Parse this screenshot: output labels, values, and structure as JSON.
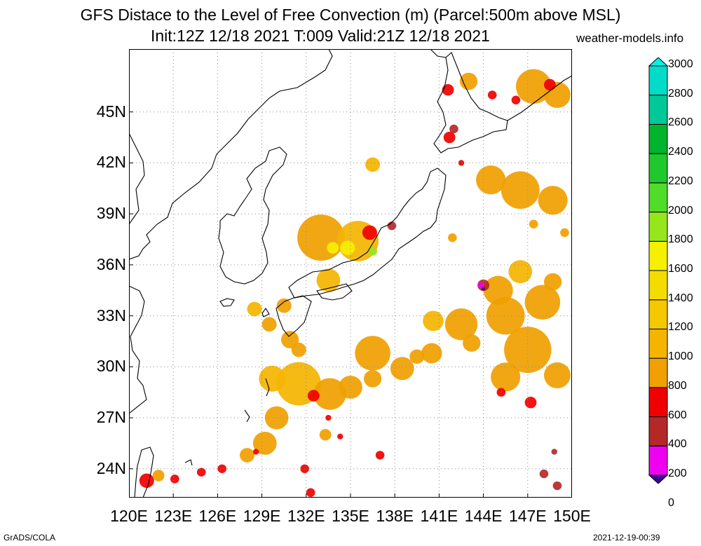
{
  "title": {
    "line1": "GFS Distace to the Level of Free Convection (m) (Parcel:500m above MSL)",
    "line2": "Init:12Z 12/18 2021 T:009 Valid:21Z 12/18 2021",
    "site": "weather-models.info"
  },
  "footer": {
    "left": "GrADS/COLA",
    "right": "2021-12-19-00:39"
  },
  "axes": {
    "lon_range": [
      120,
      150
    ],
    "lat_range": [
      22.3,
      48.7
    ],
    "x_ticks": [
      "120E",
      "123E",
      "126E",
      "129E",
      "132E",
      "135E",
      "138E",
      "141E",
      "144E",
      "147E",
      "150E"
    ],
    "y_ticks": [
      "24N",
      "27N",
      "30N",
      "33N",
      "36N",
      "39N",
      "42N",
      "45N"
    ],
    "grid": "dotted"
  },
  "colorbar": {
    "labels": [
      "0",
      "200",
      "400",
      "600",
      "800",
      "1000",
      "1200",
      "1400",
      "1600",
      "1800",
      "2000",
      "2200",
      "2400",
      "2600",
      "2800",
      "3000"
    ],
    "colors": [
      "#3c0096",
      "#f000f0",
      "#b42828",
      "#f00000",
      "#f0a000",
      "#f5b400",
      "#f5c800",
      "#f5dc00",
      "#f5f000",
      "#96e61e",
      "#50dc28",
      "#1ec82d",
      "#00b42d",
      "#00c896",
      "#00dcc8",
      "#00f0e6"
    ]
  },
  "fields": [
    {
      "lon": 133.0,
      "lat": 37.6,
      "c": 4,
      "r": 1.6
    },
    {
      "lon": 135.5,
      "lat": 37.4,
      "c": 5,
      "r": 1.4
    },
    {
      "lon": 136.3,
      "lat": 37.9,
      "c": 3,
      "r": 0.5
    },
    {
      "lon": 133.8,
      "lat": 37.0,
      "c": 8,
      "r": 0.4
    },
    {
      "lon": 134.8,
      "lat": 37.0,
      "c": 8,
      "r": 0.5
    },
    {
      "lon": 136.5,
      "lat": 36.8,
      "c": 9,
      "r": 0.3
    },
    {
      "lon": 133.5,
      "lat": 35.1,
      "c": 5,
      "r": 0.8
    },
    {
      "lon": 137.8,
      "lat": 38.3,
      "c": 2,
      "r": 0.3
    },
    {
      "lon": 136.5,
      "lat": 41.9,
      "c": 5,
      "r": 0.5
    },
    {
      "lon": 141.6,
      "lat": 46.3,
      "c": 3,
      "r": 0.4
    },
    {
      "lon": 143.0,
      "lat": 46.8,
      "c": 4,
      "r": 0.6
    },
    {
      "lon": 144.6,
      "lat": 46.0,
      "c": 3,
      "r": 0.3
    },
    {
      "lon": 147.4,
      "lat": 46.5,
      "c": 4,
      "r": 1.2
    },
    {
      "lon": 149.0,
      "lat": 46.0,
      "c": 4,
      "r": 0.9
    },
    {
      "lon": 148.5,
      "lat": 46.6,
      "c": 3,
      "r": 0.4
    },
    {
      "lon": 146.2,
      "lat": 45.7,
      "c": 3,
      "r": 0.3
    },
    {
      "lon": 141.7,
      "lat": 43.5,
      "c": 3,
      "r": 0.4
    },
    {
      "lon": 142.0,
      "lat": 44.0,
      "c": 2,
      "r": 0.3
    },
    {
      "lon": 142.5,
      "lat": 42.0,
      "c": 3,
      "r": 0.2
    },
    {
      "lon": 144.5,
      "lat": 41.0,
      "c": 4,
      "r": 1.0
    },
    {
      "lon": 146.5,
      "lat": 40.4,
      "c": 4,
      "r": 1.3
    },
    {
      "lon": 148.7,
      "lat": 39.8,
      "c": 4,
      "r": 1.0
    },
    {
      "lon": 145.0,
      "lat": 34.5,
      "c": 4,
      "r": 1.0
    },
    {
      "lon": 144.0,
      "lat": 34.8,
      "c": 2,
      "r": 0.4
    },
    {
      "lon": 143.8,
      "lat": 34.8,
      "c": 1,
      "r": 0.2
    },
    {
      "lon": 145.5,
      "lat": 33.0,
      "c": 4,
      "r": 1.3
    },
    {
      "lon": 148.0,
      "lat": 33.8,
      "c": 4,
      "r": 1.2
    },
    {
      "lon": 142.5,
      "lat": 32.5,
      "c": 4,
      "r": 1.1
    },
    {
      "lon": 140.6,
      "lat": 32.7,
      "c": 5,
      "r": 0.7
    },
    {
      "lon": 147.0,
      "lat": 31.0,
      "c": 4,
      "r": 1.6
    },
    {
      "lon": 149.0,
      "lat": 29.5,
      "c": 4,
      "r": 0.9
    },
    {
      "lon": 145.5,
      "lat": 29.4,
      "c": 4,
      "r": 1.0
    },
    {
      "lon": 145.2,
      "lat": 28.5,
      "c": 3,
      "r": 0.3
    },
    {
      "lon": 147.2,
      "lat": 27.9,
      "c": 3,
      "r": 0.4
    },
    {
      "lon": 146.5,
      "lat": 35.6,
      "c": 5,
      "r": 0.8
    },
    {
      "lon": 143.2,
      "lat": 31.4,
      "c": 4,
      "r": 0.6
    },
    {
      "lon": 136.5,
      "lat": 30.8,
      "c": 4,
      "r": 1.2
    },
    {
      "lon": 138.5,
      "lat": 29.9,
      "c": 4,
      "r": 0.8
    },
    {
      "lon": 140.5,
      "lat": 30.8,
      "c": 4,
      "r": 0.7
    },
    {
      "lon": 136.5,
      "lat": 29.3,
      "c": 4,
      "r": 0.6
    },
    {
      "lon": 131.5,
      "lat": 29.0,
      "c": 5,
      "r": 1.5
    },
    {
      "lon": 133.6,
      "lat": 28.4,
      "c": 4,
      "r": 1.1
    },
    {
      "lon": 135.0,
      "lat": 28.8,
      "c": 4,
      "r": 0.8
    },
    {
      "lon": 132.5,
      "lat": 28.3,
      "c": 3,
      "r": 0.4
    },
    {
      "lon": 129.7,
      "lat": 29.3,
      "c": 5,
      "r": 0.9
    },
    {
      "lon": 130.0,
      "lat": 27.0,
      "c": 4,
      "r": 0.8
    },
    {
      "lon": 129.2,
      "lat": 25.5,
      "c": 4,
      "r": 0.8
    },
    {
      "lon": 128.0,
      "lat": 24.8,
      "c": 4,
      "r": 0.5
    },
    {
      "lon": 130.9,
      "lat": 31.6,
      "c": 4,
      "r": 0.6
    },
    {
      "lon": 129.5,
      "lat": 32.5,
      "c": 4,
      "r": 0.5
    },
    {
      "lon": 131.5,
      "lat": 31.0,
      "c": 4,
      "r": 0.5
    },
    {
      "lon": 133.3,
      "lat": 26.0,
      "c": 4,
      "r": 0.4
    },
    {
      "lon": 130.5,
      "lat": 33.6,
      "c": 4,
      "r": 0.5
    },
    {
      "lon": 128.5,
      "lat": 33.4,
      "c": 5,
      "r": 0.5
    },
    {
      "lon": 139.5,
      "lat": 30.6,
      "c": 4,
      "r": 0.5
    },
    {
      "lon": 141.9,
      "lat": 37.6,
      "c": 4,
      "r": 0.3
    },
    {
      "lon": 147.4,
      "lat": 38.4,
      "c": 4,
      "r": 0.3
    },
    {
      "lon": 149.5,
      "lat": 37.9,
      "c": 4,
      "r": 0.3
    },
    {
      "lon": 148.7,
      "lat": 35.0,
      "c": 4,
      "r": 0.6
    },
    {
      "lon": 121.2,
      "lat": 23.3,
      "c": 3,
      "r": 0.5
    },
    {
      "lon": 122.0,
      "lat": 23.6,
      "c": 4,
      "r": 0.4
    },
    {
      "lon": 123.1,
      "lat": 23.4,
      "c": 3,
      "r": 0.3
    },
    {
      "lon": 124.9,
      "lat": 23.8,
      "c": 3,
      "r": 0.3
    },
    {
      "lon": 126.3,
      "lat": 24.0,
      "c": 3,
      "r": 0.3
    },
    {
      "lon": 128.6,
      "lat": 25.0,
      "c": 3,
      "r": 0.2
    },
    {
      "lon": 131.9,
      "lat": 24.0,
      "c": 3,
      "r": 0.3
    },
    {
      "lon": 132.3,
      "lat": 22.6,
      "c": 3,
      "r": 0.3
    },
    {
      "lon": 137.0,
      "lat": 24.8,
      "c": 3,
      "r": 0.3
    },
    {
      "lon": 133.5,
      "lat": 27.0,
      "c": 3,
      "r": 0.2
    },
    {
      "lon": 134.3,
      "lat": 25.9,
      "c": 3,
      "r": 0.2
    },
    {
      "lon": 148.1,
      "lat": 23.7,
      "c": 2,
      "r": 0.3
    },
    {
      "lon": 149.0,
      "lat": 23.0,
      "c": 2,
      "r": 0.3
    },
    {
      "lon": 148.8,
      "lat": 25.0,
      "c": 2,
      "r": 0.2
    },
    {
      "lon": 144.0,
      "lat": 34.6,
      "c": 0,
      "r": 0.12
    }
  ]
}
